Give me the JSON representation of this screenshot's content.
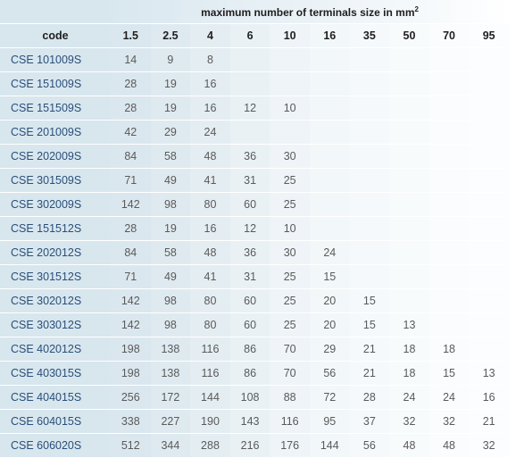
{
  "header": {
    "code_label": "code",
    "title": "maximum number of terminals size in mm",
    "title_sup": "2",
    "sizes": [
      "1.5",
      "2.5",
      "4",
      "6",
      "10",
      "16",
      "35",
      "50",
      "70",
      "95"
    ]
  },
  "rows": [
    {
      "code": "CSE 101009S",
      "values": [
        "14",
        "9",
        "8",
        "",
        "",
        "",
        "",
        "",
        "",
        ""
      ]
    },
    {
      "code": "CSE 151009S",
      "values": [
        "28",
        "19",
        "16",
        "",
        "",
        "",
        "",
        "",
        "",
        ""
      ]
    },
    {
      "code": "CSE 151509S",
      "values": [
        "28",
        "19",
        "16",
        "12",
        "10",
        "",
        "",
        "",
        "",
        ""
      ]
    },
    {
      "code": "CSE 201009S",
      "values": [
        "42",
        "29",
        "24",
        "",
        "",
        "",
        "",
        "",
        "",
        ""
      ]
    },
    {
      "code": "CSE 202009S",
      "values": [
        "84",
        "58",
        "48",
        "36",
        "30",
        "",
        "",
        "",
        "",
        ""
      ]
    },
    {
      "code": "CSE 301509S",
      "values": [
        "71",
        "49",
        "41",
        "31",
        "25",
        "",
        "",
        "",
        "",
        ""
      ]
    },
    {
      "code": "CSE 302009S",
      "values": [
        "142",
        "98",
        "80",
        "60",
        "25",
        "",
        "",
        "",
        "",
        ""
      ]
    },
    {
      "code": "CSE 151512S",
      "values": [
        "28",
        "19",
        "16",
        "12",
        "10",
        "",
        "",
        "",
        "",
        ""
      ]
    },
    {
      "code": "CSE 202012S",
      "values": [
        "84",
        "58",
        "48",
        "36",
        "30",
        "24",
        "",
        "",
        "",
        ""
      ]
    },
    {
      "code": "CSE 301512S",
      "values": [
        "71",
        "49",
        "41",
        "31",
        "25",
        "15",
        "",
        "",
        "",
        ""
      ]
    },
    {
      "code": "CSE 302012S",
      "values": [
        "142",
        "98",
        "80",
        "60",
        "25",
        "20",
        "15",
        "",
        "",
        ""
      ]
    },
    {
      "code": "CSE 303012S",
      "values": [
        "142",
        "98",
        "80",
        "60",
        "25",
        "20",
        "15",
        "13",
        "",
        ""
      ]
    },
    {
      "code": "CSE 402012S",
      "values": [
        "198",
        "138",
        "116",
        "86",
        "70",
        "29",
        "21",
        "18",
        "18",
        ""
      ]
    },
    {
      "code": "CSE 403015S",
      "values": [
        "198",
        "138",
        "116",
        "86",
        "70",
        "56",
        "21",
        "18",
        "15",
        "13"
      ]
    },
    {
      "code": "CSE 404015S",
      "values": [
        "256",
        "172",
        "144",
        "108",
        "88",
        "72",
        "28",
        "24",
        "24",
        "16"
      ]
    },
    {
      "code": "CSE 604015S",
      "values": [
        "338",
        "227",
        "190",
        "143",
        "116",
        "95",
        "37",
        "32",
        "32",
        "21"
      ]
    },
    {
      "code": "CSE 606020S",
      "values": [
        "512",
        "344",
        "288",
        "216",
        "176",
        "144",
        "56",
        "48",
        "48",
        "32"
      ]
    }
  ]
}
